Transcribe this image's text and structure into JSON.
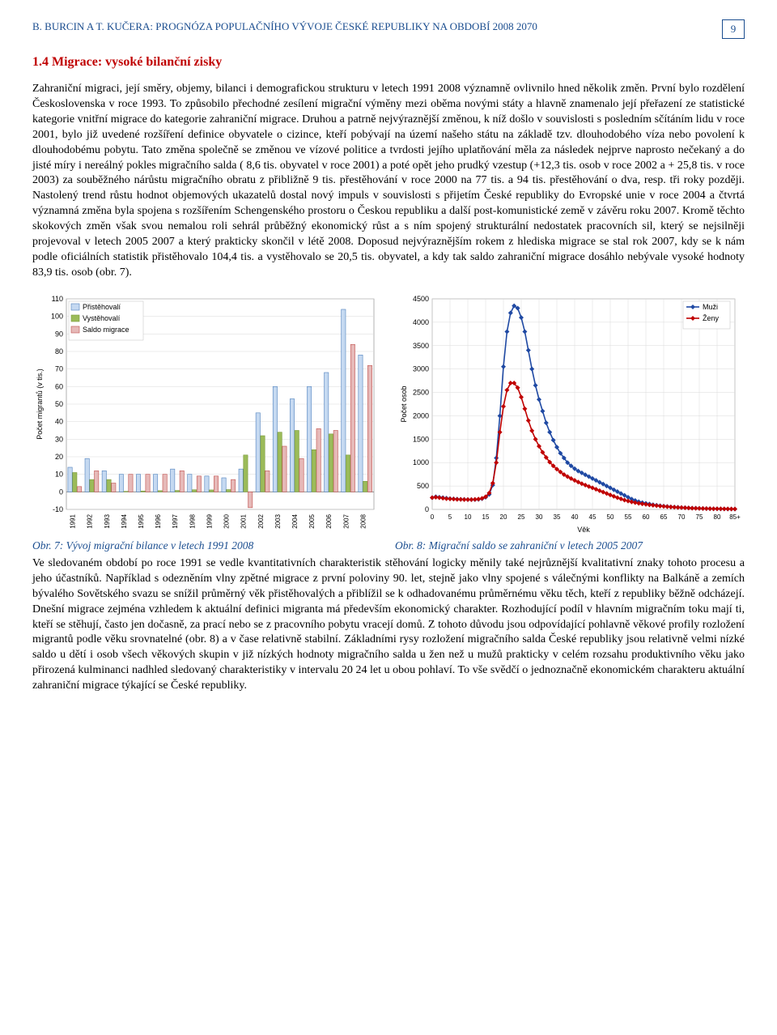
{
  "header": {
    "running_title": "B. BURCIN A T. KUČERA: PROGNÓZA POPULAČNÍHO VÝVOJE ČESKÉ REPUBLIKY NA OBDOBÍ 2008 2070",
    "page_number": "9"
  },
  "section_title": "1.4 Migrace: vysoké bilanční zisky",
  "paragraph1": "Zahraniční migraci, její směry, objemy, bilanci i demografickou strukturu v letech 1991 2008 významně ovlivnilo hned několik změn. První bylo rozdělení Československa v roce 1993. To způsobilo přechodné zesílení migrační výměny mezi oběma novými státy a hlavně znamenalo její přeřazení ze statistické kategorie vnitřní migrace do kategorie zahraniční migrace. Druhou a patrně nejvýraznější změnou, k níž došlo v souvislosti s posledním sčítáním lidu v roce 2001, bylo již uvedené rozšíření definice obyvatele o cizince, kteří pobývají na území našeho státu na základě tzv. dlouhodobého víza nebo povolení k dlouhodobému pobytu. Tato změna společně se změnou ve vízové politice a tvrdosti jejího uplatňování měla za následek nejprve naprosto nečekaný a do jisté míry i nereálný pokles migračního salda ( 8,6 tis. obyvatel v roce 2001) a poté opět jeho prudký vzestup (+12,3 tis. osob v roce 2002 a + 25,8 tis. v roce 2003) za souběžného nárůstu migračního obratu z přibližně 9 tis. přestěhování v roce 2000 na 77 tis. a 94 tis. přestěhování o dva, resp. tři roky později. Nastolený trend růstu hodnot objemových ukazatelů dostal nový impuls v souvislosti s přijetím České republiky do Evropské unie v roce 2004 a čtvrtá významná změna byla spojena s rozšířením Schengenského prostoru o Českou republiku a další post-komunistické země v závěru roku 2007. Kromě těchto skokových změn však svou nemalou roli sehrál průběžný ekonomický růst a s ním spojený strukturální nedostatek pracovních sil, který se nejsilněji projevoval v letech 2005 2007 a který prakticky skončil v létě 2008. Doposud nejvýraznějším rokem z hlediska migrace se stal rok 2007, kdy se k nám podle oficiálních statistik přistěhovalo 104,4 tis. a vystěhovalo se 20,5 tis. obyvatel, a kdy tak saldo zahraniční migrace dosáhlo nebývale vysoké hodnoty 83,9 tis. osob (obr. 7).",
  "chart7": {
    "type": "grouped-bar",
    "caption": "Obr. 7: Vývoj migrační bilance v letech 1991 2008",
    "categories": [
      "1991",
      "1992",
      "1993",
      "1994",
      "1995",
      "1996",
      "1997",
      "1998",
      "1999",
      "2000",
      "2001",
      "2002",
      "2003",
      "2004",
      "2005",
      "2006",
      "2007",
      "2008"
    ],
    "series": [
      {
        "name": "Přistěhovalí",
        "color": "#c5d9f1",
        "border": "#4f81bd",
        "values": [
          14,
          19,
          12,
          10,
          10,
          10,
          13,
          10,
          9,
          8,
          13,
          45,
          60,
          53,
          60,
          68,
          104,
          78
        ]
      },
      {
        "name": "Vystěhovalí",
        "color": "#9bbb59",
        "border": "#7a9a3a",
        "values": [
          11,
          7,
          7,
          0.3,
          0.5,
          0.7,
          0.8,
          1.2,
          1.1,
          1.3,
          21,
          32,
          34,
          35,
          24,
          33,
          21,
          6
        ]
      },
      {
        "name": "Saldo migrace",
        "color": "#e6b9b8",
        "border": "#c0504d",
        "values": [
          3,
          12,
          5,
          10,
          10,
          10,
          12,
          9,
          9,
          7,
          -9,
          12,
          26,
          19,
          36,
          35,
          84,
          72
        ]
      }
    ],
    "ylim": [
      -10,
      110
    ],
    "ytick_step": 10,
    "ylabel": "Počet migrantů (v tis.)",
    "background_color": "#ffffff",
    "grid_color": "#d9d9d9",
    "bar_group_width": 0.82,
    "label_fontsize": 9
  },
  "chart8": {
    "type": "line",
    "caption": "Obr. 8: Migrační saldo se zahraniční v letech 2005 2007",
    "xlabel": "Věk",
    "ylabel": "Počet osob",
    "x_ticks": [
      0,
      5,
      10,
      15,
      20,
      25,
      30,
      35,
      40,
      45,
      50,
      55,
      60,
      65,
      70,
      75,
      80,
      "85+"
    ],
    "ylim": [
      0,
      4500
    ],
    "ytick_step": 500,
    "series": [
      {
        "name": "Muži",
        "color": "#1f49a3",
        "marker": "diamond",
        "values": [
          [
            0,
            250
          ],
          [
            1,
            270
          ],
          [
            2,
            260
          ],
          [
            3,
            250
          ],
          [
            4,
            240
          ],
          [
            5,
            230
          ],
          [
            6,
            225
          ],
          [
            7,
            220
          ],
          [
            8,
            215
          ],
          [
            9,
            215
          ],
          [
            10,
            210
          ],
          [
            11,
            210
          ],
          [
            12,
            210
          ],
          [
            13,
            215
          ],
          [
            14,
            230
          ],
          [
            15,
            260
          ],
          [
            16,
            320
          ],
          [
            17,
            520
          ],
          [
            18,
            1100
          ],
          [
            19,
            2000
          ],
          [
            20,
            3050
          ],
          [
            21,
            3800
          ],
          [
            22,
            4200
          ],
          [
            23,
            4350
          ],
          [
            24,
            4300
          ],
          [
            25,
            4100
          ],
          [
            26,
            3800
          ],
          [
            27,
            3400
          ],
          [
            28,
            3000
          ],
          [
            29,
            2650
          ],
          [
            30,
            2350
          ],
          [
            31,
            2100
          ],
          [
            32,
            1850
          ],
          [
            33,
            1650
          ],
          [
            34,
            1480
          ],
          [
            35,
            1330
          ],
          [
            36,
            1200
          ],
          [
            37,
            1100
          ],
          [
            38,
            1000
          ],
          [
            39,
            930
          ],
          [
            40,
            870
          ],
          [
            41,
            820
          ],
          [
            42,
            780
          ],
          [
            43,
            740
          ],
          [
            44,
            700
          ],
          [
            45,
            660
          ],
          [
            46,
            620
          ],
          [
            47,
            580
          ],
          [
            48,
            540
          ],
          [
            49,
            500
          ],
          [
            50,
            460
          ],
          [
            51,
            420
          ],
          [
            52,
            380
          ],
          [
            53,
            340
          ],
          [
            54,
            300
          ],
          [
            55,
            260
          ],
          [
            56,
            220
          ],
          [
            57,
            190
          ],
          [
            58,
            165
          ],
          [
            59,
            145
          ],
          [
            60,
            130
          ],
          [
            61,
            115
          ],
          [
            62,
            100
          ],
          [
            63,
            88
          ],
          [
            64,
            78
          ],
          [
            65,
            70
          ],
          [
            66,
            62
          ],
          [
            67,
            55
          ],
          [
            68,
            50
          ],
          [
            69,
            45
          ],
          [
            70,
            40
          ],
          [
            71,
            36
          ],
          [
            72,
            32
          ],
          [
            73,
            28
          ],
          [
            74,
            25
          ],
          [
            75,
            22
          ],
          [
            76,
            20
          ],
          [
            77,
            18
          ],
          [
            78,
            16
          ],
          [
            79,
            14
          ],
          [
            80,
            12
          ],
          [
            81,
            11
          ],
          [
            82,
            10
          ],
          [
            83,
            9
          ],
          [
            84,
            8
          ],
          [
            85,
            7
          ]
        ]
      },
      {
        "name": "Ženy",
        "color": "#c00000",
        "marker": "diamond",
        "values": [
          [
            0,
            250
          ],
          [
            1,
            260
          ],
          [
            2,
            250
          ],
          [
            3,
            240
          ],
          [
            4,
            230
          ],
          [
            5,
            225
          ],
          [
            6,
            220
          ],
          [
            7,
            215
          ],
          [
            8,
            215
          ],
          [
            9,
            210
          ],
          [
            10,
            210
          ],
          [
            11,
            210
          ],
          [
            12,
            215
          ],
          [
            13,
            220
          ],
          [
            14,
            235
          ],
          [
            15,
            270
          ],
          [
            16,
            350
          ],
          [
            17,
            560
          ],
          [
            18,
            1000
          ],
          [
            19,
            1650
          ],
          [
            20,
            2200
          ],
          [
            21,
            2550
          ],
          [
            22,
            2700
          ],
          [
            23,
            2700
          ],
          [
            24,
            2600
          ],
          [
            25,
            2400
          ],
          [
            26,
            2150
          ],
          [
            27,
            1900
          ],
          [
            28,
            1680
          ],
          [
            29,
            1500
          ],
          [
            30,
            1350
          ],
          [
            31,
            1220
          ],
          [
            32,
            1110
          ],
          [
            33,
            1010
          ],
          [
            34,
            930
          ],
          [
            35,
            860
          ],
          [
            36,
            800
          ],
          [
            37,
            745
          ],
          [
            38,
            700
          ],
          [
            39,
            660
          ],
          [
            40,
            620
          ],
          [
            41,
            585
          ],
          [
            42,
            550
          ],
          [
            43,
            520
          ],
          [
            44,
            490
          ],
          [
            45,
            460
          ],
          [
            46,
            430
          ],
          [
            47,
            400
          ],
          [
            48,
            370
          ],
          [
            49,
            340
          ],
          [
            50,
            310
          ],
          [
            51,
            280
          ],
          [
            52,
            250
          ],
          [
            53,
            225
          ],
          [
            54,
            200
          ],
          [
            55,
            180
          ],
          [
            56,
            160
          ],
          [
            57,
            145
          ],
          [
            58,
            130
          ],
          [
            59,
            118
          ],
          [
            60,
            108
          ],
          [
            61,
            98
          ],
          [
            62,
            88
          ],
          [
            63,
            80
          ],
          [
            64,
            72
          ],
          [
            65,
            65
          ],
          [
            66,
            58
          ],
          [
            67,
            52
          ],
          [
            68,
            47
          ],
          [
            69,
            42
          ],
          [
            70,
            38
          ],
          [
            71,
            34
          ],
          [
            72,
            30
          ],
          [
            73,
            27
          ],
          [
            74,
            24
          ],
          [
            75,
            22
          ],
          [
            76,
            20
          ],
          [
            77,
            18
          ],
          [
            78,
            16
          ],
          [
            79,
            14
          ],
          [
            80,
            13
          ],
          [
            81,
            12
          ],
          [
            82,
            11
          ],
          [
            83,
            10
          ],
          [
            84,
            9
          ],
          [
            85,
            8
          ]
        ]
      }
    ],
    "background_color": "#ffffff",
    "grid_color": "#d9d9d9",
    "line_width": 1.6,
    "marker_size": 3,
    "label_fontsize": 9
  },
  "paragraph2": "Ve sledovaném období po roce 1991 se vedle kvantitativních charakteristik stěhování logicky měnily také nejrůznější kvalitativní znaky tohoto procesu a jeho účastníků. Například s odezněním vlny zpětné migrace z první poloviny 90. let, stejně jako vlny spojené s válečnými konflikty na Balkáně a zemích bývalého Sovětského svazu se snížil průměrný věk přistěhovalých a přiblížil se k odhadovanému průměrnému věku těch, kteří z republiky běžně odcházejí. Dnešní migrace zejména vzhledem k aktuální definici migranta má především ekonomický charakter. Rozhodující podíl v hlavním migračním toku mají ti, kteří se stěhují, často jen dočasně, za prací nebo se z pracovního pobytu vracejí domů. Z tohoto důvodu jsou odpovídající pohlavně věkové profily rozložení migrantů podle věku srovnatelné (obr. 8) a v čase relativně stabilní. Základními rysy rozložení migračního salda České republiky jsou relativně velmi nízké saldo u dětí i osob všech věkových skupin v již nízkých hodnoty migračního salda u žen než u mužů prakticky v celém rozsahu produktivního věku jako přirozená kulminanci nadhled sledovaný charakteristiky v intervalu 20 24 let u obou pohlaví. To vše svědčí o jednoznačně ekonomickém charakteru aktuální zahraniční migrace týkající se České republiky."
}
